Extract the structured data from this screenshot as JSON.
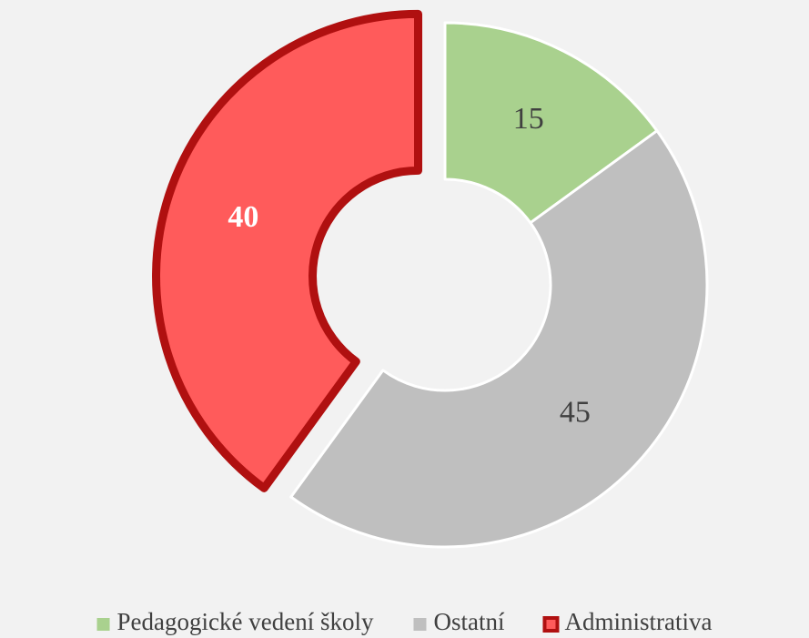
{
  "chart_data": {
    "type": "donut",
    "categories": [
      "Pedagogické vedení školy",
      "Ostatní",
      "Administrativa"
    ],
    "values": [
      15,
      45,
      40
    ],
    "colors": [
      "#a9d18e",
      "#bfbfbf",
      "#ff5b5b"
    ],
    "outline_colors": [
      "#ffffff",
      "#ffffff",
      "#b01010"
    ],
    "label_colors": [
      "#404040",
      "#404040",
      "#ffffff"
    ],
    "exploded": [
      false,
      false,
      true
    ],
    "legend": "bottom"
  }
}
